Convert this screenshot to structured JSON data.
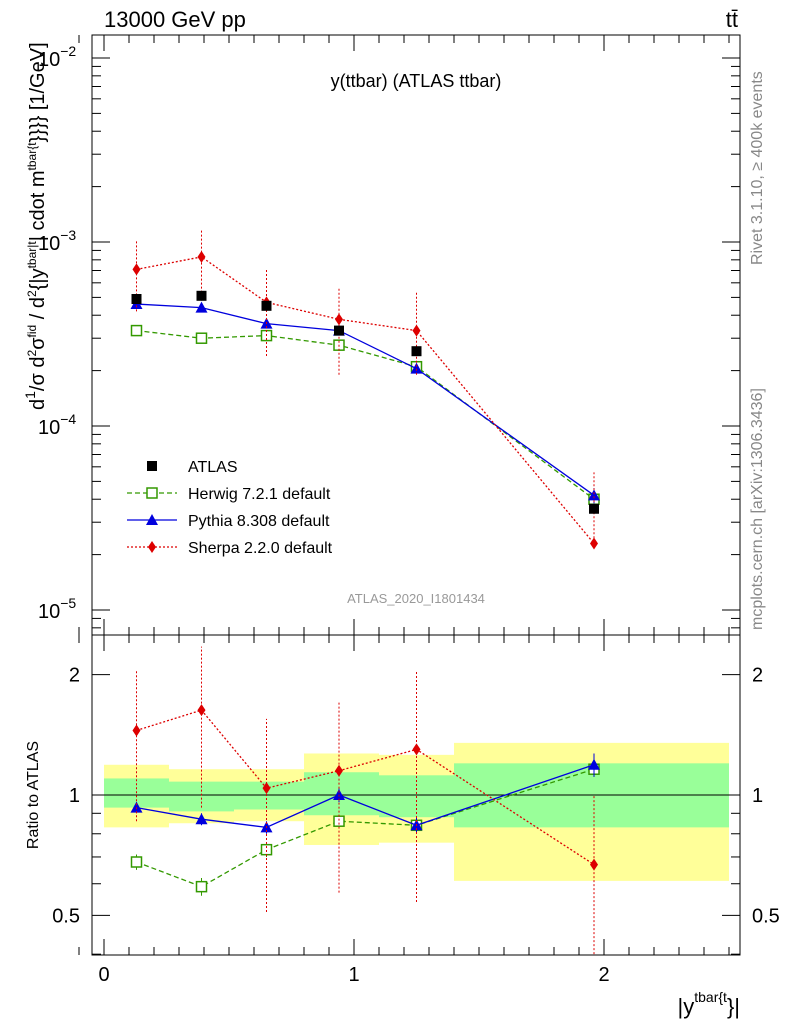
{
  "header": {
    "left": "13000 GeV pp",
    "right": "tt̄"
  },
  "side_labels": {
    "rivet": "Rivet 3.1.10, ≥ 400k events",
    "mcplots": "mcplots.cern.ch [arXiv:1306.3436]"
  },
  "watermark": "ATLAS_2020_I1801434",
  "chart_data": [
    {
      "type": "scatter",
      "panel": "main",
      "title": "y(ttbar) (ATLAS ttbar)",
      "xlabel": "|y^{tbar{t}}|",
      "ylabel": "d1/σ d d²σ^fid / d² {|y^tbar|t| cdot m^tbar{t}}}} [1/GeV]",
      "yscale": "log",
      "ylim": [
        8e-06,
        0.013
      ],
      "xlim": [
        -0.1,
        2.6
      ],
      "yticks": [
        {
          "value": 1e-05,
          "base": "10",
          "exp": "−5"
        },
        {
          "value": 0.0001,
          "base": "10",
          "exp": "−4"
        },
        {
          "value": 0.001,
          "base": "10",
          "exp": "−3"
        },
        {
          "value": 0.01,
          "base": "10",
          "exp": "−2"
        }
      ],
      "legend_position": "bottom-left",
      "series": [
        {
          "name": "ATLAS",
          "color": "#000000",
          "marker": "square-filled",
          "line": "none",
          "x": [
            0.13,
            0.39,
            0.65,
            0.94,
            1.25,
            1.96
          ],
          "y": [
            0.00049,
            0.00051,
            0.00045,
            0.00033,
            0.000255,
            3.55e-05
          ]
        },
        {
          "name": "Herwig 7.2.1 default",
          "color": "#339900",
          "marker": "square-open",
          "line": "dashed",
          "x": [
            0.13,
            0.39,
            0.65,
            0.94,
            1.25,
            1.96
          ],
          "y": [
            0.00033,
            0.0003,
            0.00031,
            0.000275,
            0.00021,
            4e-05
          ],
          "err": [
            1.2e-05,
            1.2e-05,
            1.3e-05,
            1.2e-05,
            1e-05,
            3e-06
          ]
        },
        {
          "name": "Pythia 8.308 default",
          "color": "#0000dd",
          "marker": "triangle",
          "line": "solid",
          "x": [
            0.13,
            0.39,
            0.65,
            0.94,
            1.25,
            1.96
          ],
          "y": [
            0.00046,
            0.00044,
            0.00036,
            0.00033,
            0.000205,
            4.2e-05
          ],
          "err": [
            1.5e-05,
            1.4e-05,
            1.3e-05,
            1.2e-05,
            1e-05,
            4e-06
          ]
        },
        {
          "name": "Sherpa 2.2.0 default",
          "color": "#dd0000",
          "marker": "diamond",
          "line": "dotted",
          "x": [
            0.13,
            0.39,
            0.65,
            0.94,
            1.25,
            1.96
          ],
          "y": [
            0.00071,
            0.00083,
            0.00047,
            0.00038,
            0.00033,
            2.3e-05
          ],
          "err_lo": [
            0.00042,
            0.00048,
            0.00024,
            0.00019,
            0.00019,
            2.22e-05
          ],
          "err_hi": [
            0.00101,
            0.00118,
            0.00072,
            0.00057,
            0.00053,
            5.6e-05
          ]
        }
      ]
    },
    {
      "type": "scatter",
      "panel": "ratio",
      "ylabel": "Ratio to ATLAS",
      "xlabel": "|y^{tbar{t}}|",
      "yscale": "log",
      "ylim": [
        0.4,
        2.5
      ],
      "xlim": [
        -0.1,
        2.6
      ],
      "xticks": [
        {
          "value": 0,
          "label": "0"
        },
        {
          "value": 1,
          "label": "1"
        },
        {
          "value": 2,
          "label": "2"
        }
      ],
      "yticks": [
        {
          "value": 0.5,
          "label": "0.5"
        },
        {
          "value": 1,
          "label": "1"
        },
        {
          "value": 2,
          "label": "2"
        }
      ],
      "bands": {
        "bin_edges": [
          0,
          0.26,
          0.52,
          0.8,
          1.1,
          1.4,
          2.5
        ],
        "stat_lo": [
          0.93,
          0.91,
          0.92,
          0.89,
          0.88,
          0.83
        ],
        "stat_hi": [
          1.1,
          1.08,
          1.08,
          1.14,
          1.12,
          1.2
        ],
        "total_lo": [
          0.83,
          0.85,
          0.86,
          0.75,
          0.76,
          0.61
        ],
        "total_hi": [
          1.19,
          1.16,
          1.16,
          1.27,
          1.26,
          1.35
        ],
        "stat_color": "#99ff99",
        "total_color": "#ffff99"
      },
      "series": [
        {
          "name": "Herwig 7.2.1 default",
          "color": "#339900",
          "marker": "square-open",
          "line": "dashed",
          "x": [
            0.13,
            0.39,
            0.65,
            0.94,
            1.25,
            1.96
          ],
          "y": [
            0.68,
            0.59,
            0.73,
            0.86,
            0.84,
            1.16
          ],
          "err": [
            0.03,
            0.03,
            0.03,
            0.03,
            0.03,
            0.05
          ]
        },
        {
          "name": "Pythia 8.308 default",
          "color": "#0000dd",
          "marker": "triangle",
          "line": "solid",
          "x": [
            0.13,
            0.39,
            0.65,
            0.94,
            1.25,
            1.96
          ],
          "y": [
            0.93,
            0.87,
            0.83,
            1.0,
            0.84,
            1.19
          ],
          "err": [
            0.03,
            0.03,
            0.03,
            0.04,
            0.04,
            0.08
          ]
        },
        {
          "name": "Sherpa 2.2.0 default",
          "color": "#dd0000",
          "marker": "diamond",
          "line": "dotted",
          "x": [
            0.13,
            0.39,
            0.65,
            0.94,
            1.25,
            1.96
          ],
          "y": [
            1.45,
            1.63,
            1.04,
            1.15,
            1.3,
            0.67
          ],
          "err_lo": [
            0.86,
            0.93,
            0.51,
            0.57,
            0.54,
            0.4
          ],
          "err_hi": [
            2.05,
            2.35,
            1.55,
            1.72,
            2.05,
            1.0
          ]
        }
      ]
    }
  ]
}
